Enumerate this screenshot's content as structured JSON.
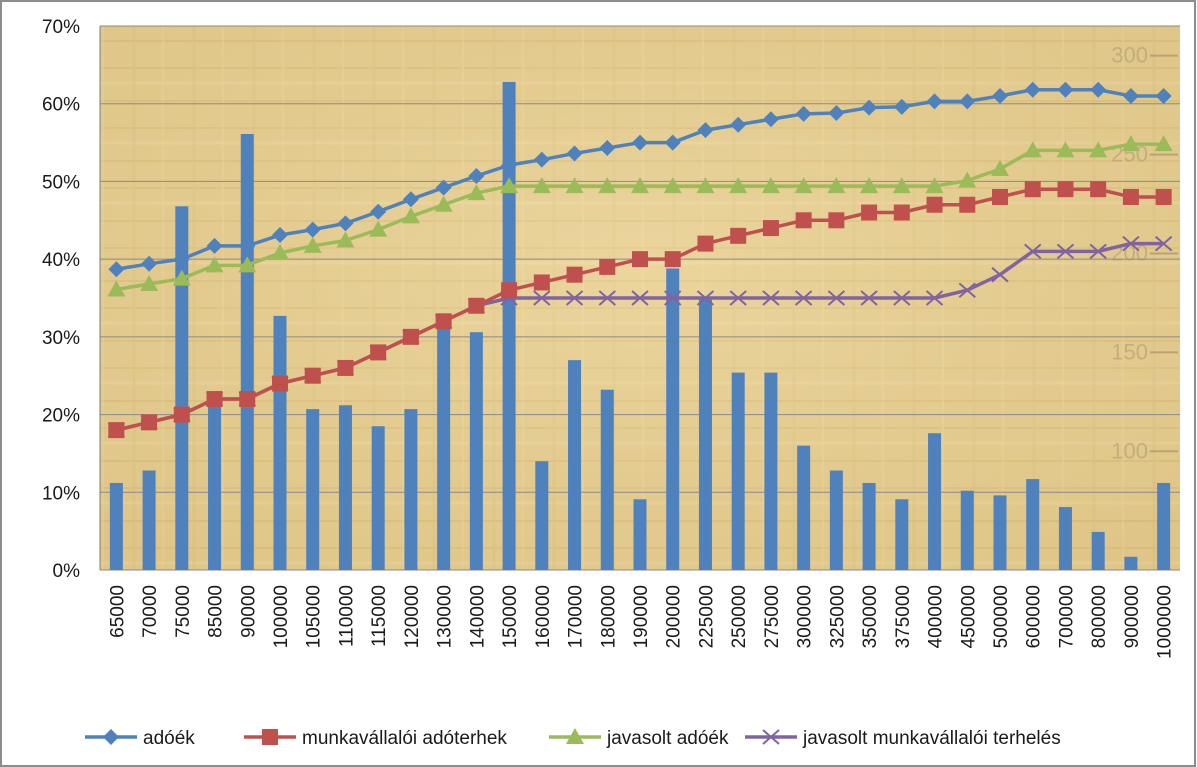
{
  "chart_data": {
    "type": "bar",
    "title": "",
    "xlabel": "",
    "ylabel": "",
    "ylim": [
      0,
      70
    ],
    "y_tick_labels": [
      "0%",
      "10%",
      "20%",
      "30%",
      "40%",
      "50%",
      "60%",
      "70%"
    ],
    "y_tick_values": [
      0,
      10,
      20,
      30,
      40,
      50,
      60,
      70
    ],
    "y2_tick_labels": [
      "100",
      "150",
      "200",
      "250",
      "300"
    ],
    "y2_tick_values": [
      100,
      150,
      200,
      250,
      300
    ],
    "y2lim": [
      40,
      315
    ],
    "grid": true,
    "legend_position": "bottom",
    "categories": [
      "65000",
      "70000",
      "75000",
      "85000",
      "90000",
      "100000",
      "105000",
      "110000",
      "115000",
      "120000",
      "130000",
      "140000",
      "150000",
      "160000",
      "170000",
      "180000",
      "190000",
      "200000",
      "225000",
      "250000",
      "275000",
      "300000",
      "325000",
      "350000",
      "375000",
      "400000",
      "450000",
      "500000",
      "600000",
      "700000",
      "800000",
      "900000",
      "1000000"
    ],
    "bars": {
      "color": "#4f81bd",
      "values": [
        11.2,
        12.8,
        46.8,
        21.5,
        56.1,
        32.7,
        20.7,
        21.2,
        18.5,
        20.7,
        31.2,
        30.6,
        62.8,
        14.0,
        27.0,
        23.2,
        9.1,
        38.8,
        34.8,
        25.4,
        25.4,
        16.0,
        12.8,
        11.2,
        9.1,
        17.6,
        10.2,
        9.6,
        11.7,
        8.1,
        4.9,
        1.7,
        11.2
      ]
    },
    "series": [
      {
        "name": "adóék",
        "color": "#4f81bd",
        "marker": "diamond",
        "values": [
          38.7,
          39.4,
          40.0,
          41.7,
          41.7,
          43.1,
          43.8,
          44.6,
          46.1,
          47.7,
          49.2,
          50.7,
          52.1,
          52.8,
          53.6,
          54.3,
          55.0,
          55.0,
          56.6,
          57.3,
          58.0,
          58.7,
          58.8,
          59.5,
          59.6,
          60.3,
          60.3,
          61.0,
          61.8,
          61.8,
          61.8,
          61.0,
          61.0
        ]
      },
      {
        "name": "munkavállalói adóterhek",
        "color": "#c0504d",
        "marker": "square",
        "values": [
          18.0,
          19.0,
          20.0,
          22.0,
          22.0,
          24.0,
          25.0,
          26.0,
          28.0,
          30.0,
          32.0,
          34.0,
          36.0,
          37.0,
          38.0,
          39.0,
          40.0,
          40.0,
          42.0,
          43.0,
          44.0,
          45.0,
          45.0,
          46.0,
          46.0,
          47.0,
          47.0,
          48.0,
          49.0,
          49.0,
          49.0,
          48.0,
          48.0
        ]
      },
      {
        "name": "javasolt adóék",
        "color": "#9bbb59",
        "marker": "triangle",
        "values": [
          36.1,
          36.8,
          37.5,
          39.2,
          39.2,
          40.8,
          41.7,
          42.4,
          43.8,
          45.5,
          47.0,
          48.5,
          49.4,
          49.4,
          49.4,
          49.4,
          49.4,
          49.4,
          49.4,
          49.4,
          49.4,
          49.4,
          49.4,
          49.4,
          49.4,
          49.4,
          50.1,
          51.6,
          54.0,
          54.0,
          54.0,
          54.8,
          54.8
        ]
      },
      {
        "name": "javasolt munkavállalói terhelés",
        "color": "#8064a2",
        "marker": "x",
        "values": [
          18.0,
          19.0,
          20.0,
          22.0,
          22.0,
          24.0,
          25.0,
          26.0,
          28.0,
          30.0,
          32.0,
          34.0,
          35.0,
          35.0,
          35.0,
          35.0,
          35.0,
          35.0,
          35.0,
          35.0,
          35.0,
          35.0,
          35.0,
          35.0,
          35.0,
          35.0,
          36.0,
          38.0,
          41.0,
          41.0,
          41.0,
          42.0,
          42.0
        ]
      }
    ]
  }
}
